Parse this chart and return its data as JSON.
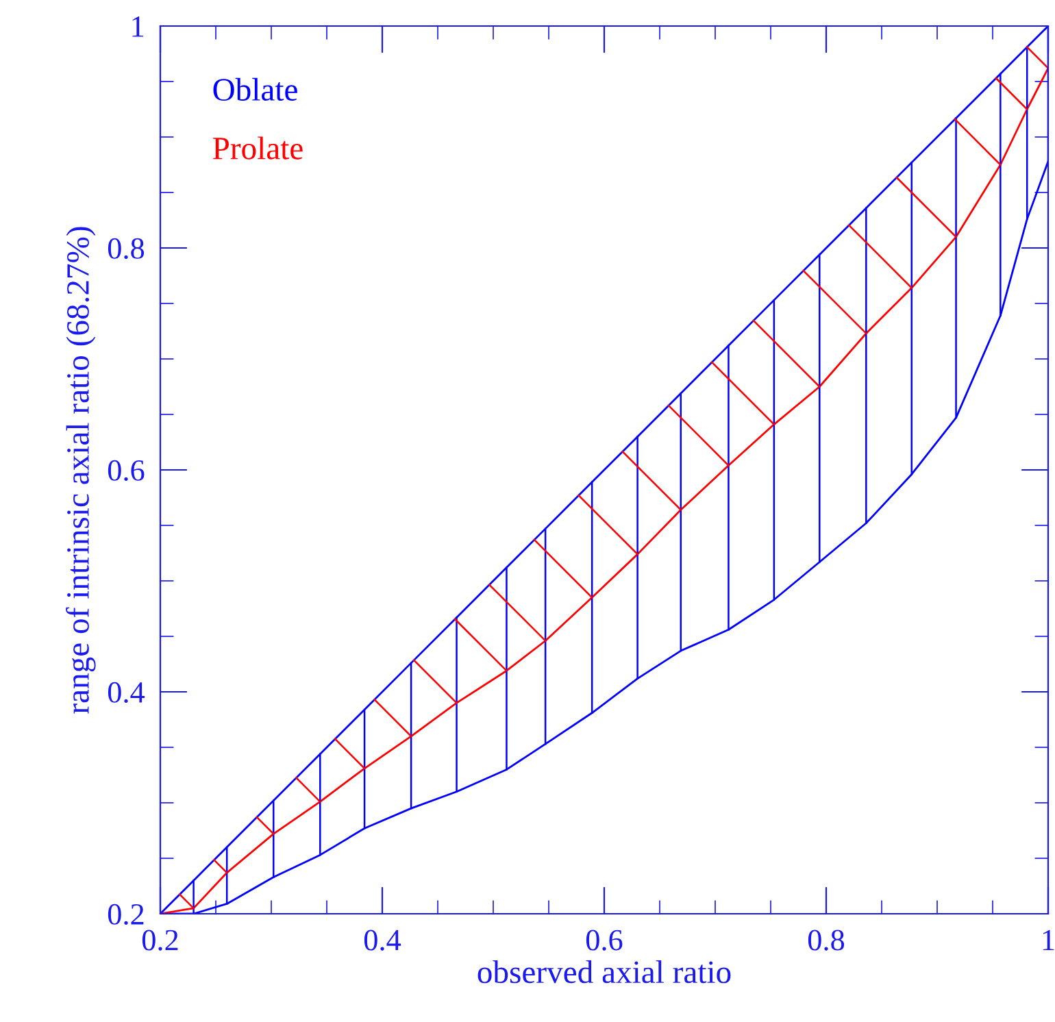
{
  "chart_data": {
    "type": "line",
    "xlabel": "observed axial ratio",
    "ylabel": "range of intrinsic axial ratio (68.27%)",
    "x": [
      0.2,
      0.23,
      0.26,
      0.302,
      0.344,
      0.384,
      0.426,
      0.467,
      0.512,
      0.547,
      0.589,
      0.63,
      0.669,
      0.712,
      0.753,
      0.794,
      0.836,
      0.877,
      0.917,
      0.957,
      0.981,
      1.0
    ],
    "series": [
      {
        "color": "#0000ff",
        "values": [
          0.2,
          0.23,
          0.26,
          0.302,
          0.344,
          0.384,
          0.426,
          0.467,
          0.512,
          0.547,
          0.589,
          0.63,
          0.669,
          0.712,
          0.753,
          0.794,
          0.836,
          0.877,
          0.917,
          0.957,
          0.981,
          1.0
        ]
      },
      {
        "name": "Oblate",
        "color": "#0000ff",
        "values": [
          0.2,
          0.2,
          0.209,
          0.233,
          0.253,
          0.277,
          0.295,
          0.31,
          0.33,
          0.353,
          0.381,
          0.412,
          0.437,
          0.456,
          0.483,
          0.517,
          0.552,
          0.596,
          0.647,
          0.739,
          0.826,
          0.878
        ]
      },
      {
        "name": "Prolate",
        "color": "#ff0000",
        "values": [
          0.2,
          0.205,
          0.237,
          0.272,
          0.301,
          0.331,
          0.36,
          0.39,
          0.419,
          0.446,
          0.485,
          0.524,
          0.564,
          0.604,
          0.641,
          0.675,
          0.723,
          0.764,
          0.81,
          0.875,
          0.925,
          0.962
        ]
      }
    ],
    "xlim": [
      0.2,
      1
    ],
    "ylim": [
      0.2,
      1
    ],
    "xticks": [
      0.2,
      0.4,
      0.6,
      0.8,
      {
        "value": 1,
        "label": "1"
      }
    ],
    "yticks": [
      0.2,
      0.4,
      0.6,
      0.8,
      {
        "value": 1,
        "label": "1"
      }
    ],
    "legend": "top left",
    "grid": false
  }
}
